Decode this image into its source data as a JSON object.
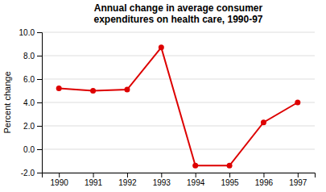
{
  "chart_data": {
    "type": "line",
    "title": "Annual change in average consumer\nexpenditures on health care, 1990-97",
    "ylabel": "Percent change",
    "x": [
      1990,
      1991,
      1992,
      1993,
      1994,
      1995,
      1996,
      1997
    ],
    "values": [
      5.2,
      5.0,
      5.1,
      8.7,
      -1.4,
      -1.4,
      2.3,
      4.0
    ],
    "xlim": [
      1989.5,
      1997.5
    ],
    "xticks": [
      1990,
      1991,
      1992,
      1993,
      1994,
      1995,
      1996,
      1997
    ],
    "ylim": [
      -2.0,
      10.0
    ],
    "yticks": [
      {
        "value": -2.0,
        "label": "-2.0"
      },
      {
        "value": 0.0,
        "label": "0.0"
      },
      {
        "value": 2.0,
        "label": "2.0"
      },
      {
        "value": 4.0,
        "label": "4.0"
      },
      {
        "value": 6.0,
        "label": "6.0"
      },
      {
        "value": 8.0,
        "label": "8.0"
      },
      {
        "value": 10.0,
        "label": "10.0"
      }
    ],
    "color": "#dd0000",
    "marker": "circle",
    "grid": true
  }
}
